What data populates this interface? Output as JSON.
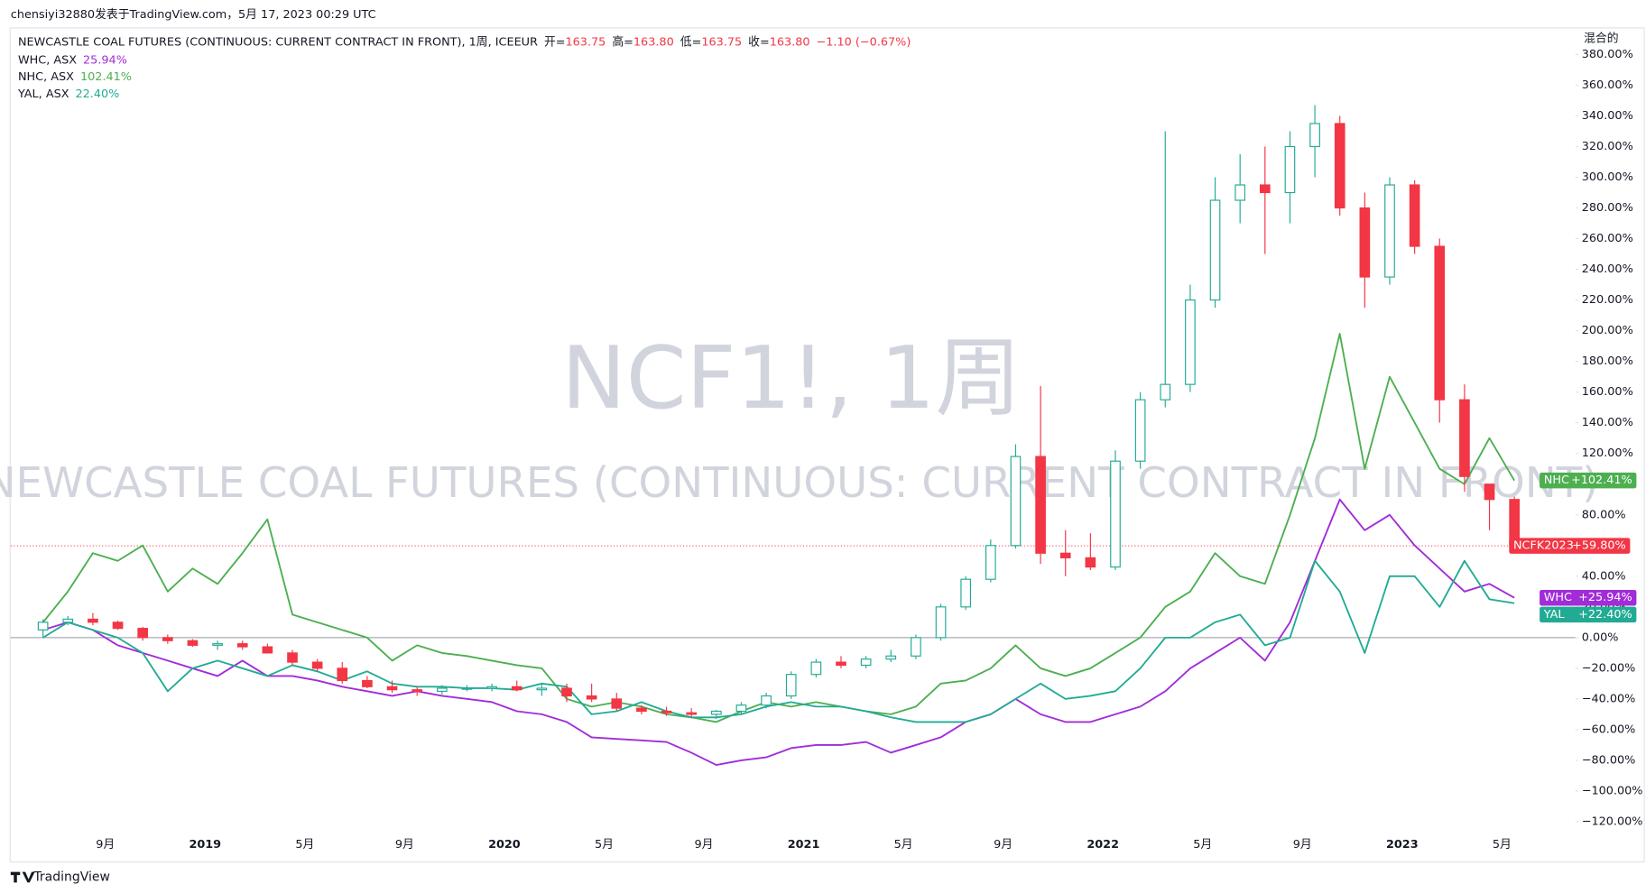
{
  "header": {
    "published": "chensiyi32880发表于TradingView.com，5月 17, 2023 00:29 UTC"
  },
  "watermark": {
    "symbol": "NCF1!, 1周",
    "description": "NEWCASTLE COAL FUTURES (CONTINUOUS: CURRENT CONTRACT IN FRONT)"
  },
  "footer": {
    "brand": "TradingView"
  },
  "chart_data": {
    "type": "candlestick",
    "title": "NEWCASTLE COAL FUTURES (CONTINUOUS: CURRENT CONTRACT IN FRONT), 1周, ICEEUR",
    "ohlc_legend": [
      {
        "label": "开=",
        "value": "163.75"
      },
      {
        "label": "高=",
        "value": "163.80"
      },
      {
        "label": "低=",
        "value": "163.75"
      },
      {
        "label": "收=",
        "value": "163.80"
      }
    ],
    "change": "−1.10 (−0.67%)",
    "y_axis_label": "混合的",
    "categories": [
      null,
      null,
      null,
      "9月",
      null,
      null,
      null,
      "2019",
      null,
      null,
      null,
      "5月",
      null,
      null,
      null,
      "9月",
      null,
      null,
      null,
      "2020",
      null,
      null,
      null,
      "5月",
      null,
      null,
      null,
      "9月",
      null,
      null,
      null,
      "2021",
      null,
      null,
      null,
      "5月",
      null,
      null,
      null,
      "9月",
      null,
      null,
      null,
      "2022",
      null,
      null,
      null,
      "5月",
      null,
      null,
      null,
      "9月",
      null,
      null,
      null,
      "2023",
      null,
      null,
      null,
      "5月"
    ],
    "open": [
      5,
      10,
      12,
      10,
      6,
      0,
      -2,
      -5,
      -4,
      -6,
      -10,
      -16,
      -20,
      -28,
      -32,
      -34,
      -35,
      -33,
      -33,
      -32,
      -34,
      -33,
      -38,
      -40,
      -46,
      -48,
      -49,
      -50,
      -48,
      -44,
      -38,
      -24,
      -16,
      -18,
      -14,
      -12,
      0,
      20,
      38,
      60,
      118,
      55,
      52,
      46,
      115,
      155,
      165,
      220,
      285,
      295,
      290,
      320,
      335,
      280,
      235,
      295,
      255,
      155,
      100,
      90
    ],
    "high": [
      12,
      14,
      16,
      11,
      7,
      2,
      -1,
      -2,
      -2,
      -4,
      -8,
      -14,
      -16,
      -25,
      -28,
      -32,
      -31,
      -31,
      -30,
      -28,
      -30,
      -30,
      -30,
      -36,
      -44,
      -45,
      -46,
      -47,
      -42,
      -36,
      -22,
      -14,
      -12,
      -12,
      -8,
      2,
      22,
      40,
      64,
      126,
      164,
      70,
      68,
      122,
      160,
      330,
      230,
      300,
      315,
      320,
      330,
      347,
      340,
      290,
      300,
      298,
      260,
      165,
      100,
      92
    ],
    "low": [
      0,
      8,
      8,
      5,
      -2,
      -4,
      -6,
      -8,
      -8,
      -10,
      -18,
      -22,
      -30,
      -33,
      -36,
      -38,
      -37,
      -35,
      -35,
      -35,
      -38,
      -42,
      -42,
      -48,
      -50,
      -51,
      -52,
      -53,
      -50,
      -46,
      -40,
      -26,
      -20,
      -20,
      -16,
      -14,
      -2,
      18,
      36,
      58,
      48,
      40,
      44,
      44,
      110,
      150,
      160,
      215,
      270,
      250,
      270,
      300,
      275,
      215,
      230,
      250,
      140,
      95,
      70,
      58
    ],
    "close": [
      10,
      12,
      10,
      6,
      0,
      -2,
      -5,
      -4,
      -6,
      -10,
      -16,
      -20,
      -28,
      -32,
      -34,
      -35,
      -33,
      -33,
      -32,
      -34,
      -33,
      -38,
      -40,
      -46,
      -48,
      -49,
      -50,
      -48,
      -44,
      -38,
      -24,
      -16,
      -18,
      -14,
      -12,
      0,
      20,
      38,
      60,
      118,
      55,
      52,
      46,
      115,
      155,
      165,
      220,
      285,
      295,
      290,
      320,
      335,
      280,
      235,
      295,
      255,
      155,
      105,
      90,
      59.8
    ],
    "up_color": "#22ab94",
    "down_color": "#f23645",
    "last_tag": {
      "name": "NCFK2023",
      "label": "+59.80%",
      "value": 59.8
    },
    "series": [
      {
        "name": "WHC, ASX",
        "legend_value": "25.94%",
        "tag": "WHC",
        "tag_label": "+25.94%",
        "color": "#a12cd8",
        "values": [
          5,
          10,
          5,
          -5,
          -10,
          -15,
          -20,
          -25,
          -15,
          -25,
          -25,
          -28,
          -32,
          -35,
          -38,
          -35,
          -38,
          -40,
          -42,
          -48,
          -50,
          -55,
          -65,
          -66,
          -67,
          -68,
          -75,
          -83,
          -80,
          -78,
          -72,
          -70,
          -70,
          -68,
          -75,
          -70,
          -65,
          -55,
          -50,
          -40,
          -50,
          -55,
          -55,
          -50,
          -45,
          -35,
          -20,
          -10,
          0,
          -15,
          10,
          50,
          90,
          70,
          80,
          60,
          45,
          30,
          35,
          25.94
        ]
      },
      {
        "name": "NHC, ASX",
        "legend_value": "102.41%",
        "tag": "NHC",
        "tag_label": "+102.41%",
        "color": "#4caf50",
        "values": [
          10,
          30,
          55,
          50,
          60,
          30,
          45,
          35,
          55,
          77,
          15,
          10,
          5,
          0,
          -15,
          -5,
          -10,
          -12,
          -15,
          -18,
          -20,
          -40,
          -45,
          -42,
          -45,
          -50,
          -52,
          -55,
          -48,
          -42,
          -45,
          -42,
          -45,
          -48,
          -50,
          -45,
          -30,
          -28,
          -20,
          -5,
          -20,
          -25,
          -20,
          -10,
          0,
          20,
          30,
          55,
          40,
          35,
          80,
          130,
          198,
          110,
          170,
          140,
          110,
          100,
          130,
          102.41
        ]
      },
      {
        "name": "YAL, ASX",
        "legend_value": "22.40%",
        "tag": "YAL",
        "tag_label": "+22.40%",
        "color": "#22ab94",
        "values": [
          0,
          10,
          5,
          0,
          -10,
          -35,
          -20,
          -15,
          -20,
          -25,
          -18,
          -22,
          -28,
          -22,
          -30,
          -32,
          -32,
          -33,
          -33,
          -34,
          -30,
          -32,
          -50,
          -48,
          -42,
          -48,
          -52,
          -52,
          -50,
          -45,
          -42,
          -45,
          -45,
          -48,
          -52,
          -55,
          -55,
          -55,
          -50,
          -40,
          -30,
          -40,
          -38,
          -35,
          -20,
          0,
          0,
          10,
          15,
          -5,
          0,
          50,
          30,
          -10,
          40,
          40,
          20,
          50,
          25,
          22.4
        ]
      }
    ],
    "baseline": 0,
    "grid": false,
    "ylim": [
      -126,
      397
    ],
    "yticks": [
      {
        "value": -120,
        "label": "−120.00%"
      },
      {
        "value": -100,
        "label": "−100.00%"
      },
      {
        "value": -80,
        "label": "−80.00%"
      },
      {
        "value": -60,
        "label": "−60.00%"
      },
      {
        "value": -40,
        "label": "−40.00%"
      },
      {
        "value": -20,
        "label": "−20.00%"
      },
      {
        "value": 0,
        "label": "0.00%"
      },
      {
        "value": 20,
        "label": "20.00%"
      },
      {
        "value": 40,
        "label": "40.00%"
      },
      {
        "value": 60,
        "label": "60.00%"
      },
      {
        "value": 80,
        "label": "80.00%"
      },
      {
        "value": 100,
        "label": "100.00%"
      },
      {
        "value": 120,
        "label": "120.00%"
      },
      {
        "value": 140,
        "label": "140.00%"
      },
      {
        "value": 160,
        "label": "160.00%"
      },
      {
        "value": 180,
        "label": "180.00%"
      },
      {
        "value": 200,
        "label": "200.00%"
      },
      {
        "value": 220,
        "label": "220.00%"
      },
      {
        "value": 240,
        "label": "240.00%"
      },
      {
        "value": 260,
        "label": "260.00%"
      },
      {
        "value": 280,
        "label": "280.00%"
      },
      {
        "value": 300,
        "label": "300.00%"
      },
      {
        "value": 320,
        "label": "320.00%"
      },
      {
        "value": 340,
        "label": "340.00%"
      },
      {
        "value": 360,
        "label": "360.00%"
      },
      {
        "value": 380,
        "label": "380.00%"
      }
    ]
  }
}
